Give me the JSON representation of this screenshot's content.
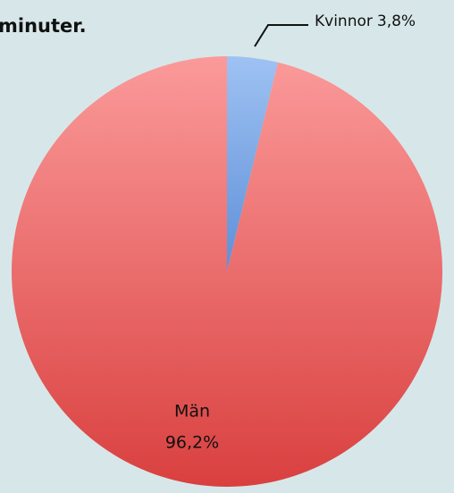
{
  "chart_data": {
    "type": "pie",
    "title": "minuter.",
    "categories": [
      "Kvinnor",
      "Män"
    ],
    "values": [
      3.8,
      96.2
    ],
    "value_labels": [
      "3,8%",
      "96,2%"
    ],
    "colors": [
      "#7fa9e6",
      "#e9676a"
    ]
  }
}
